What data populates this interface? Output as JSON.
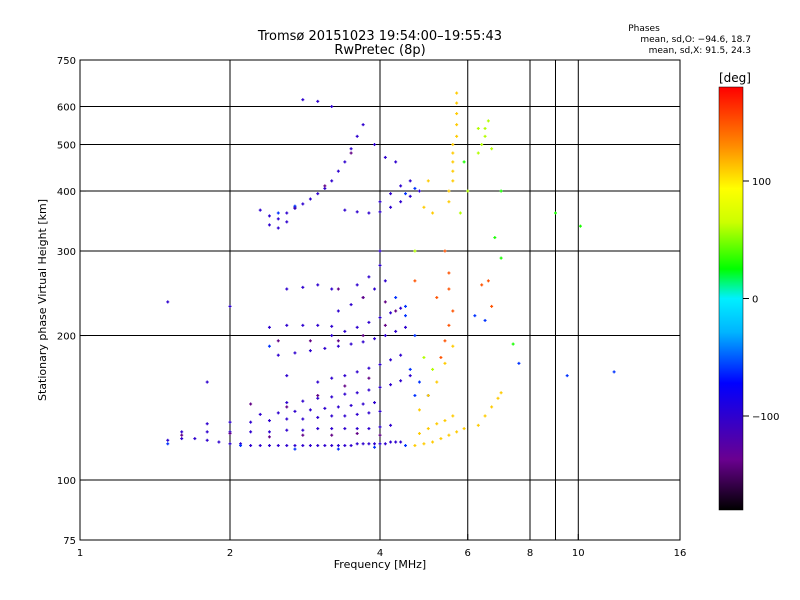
{
  "chart_data": {
    "type": "scatter",
    "title": "Tromsø 20151023 19:54:00–19:55:43",
    "subtitle": "RwPretec (8p)",
    "xlabel": "Frequency [MHz]",
    "ylabel": "Stationary phase Virtual Height [km]",
    "x_scale": "log",
    "y_scale": "log",
    "xlim": [
      1,
      16
    ],
    "ylim": [
      75,
      750
    ],
    "x_ticks": [
      1,
      2,
      4,
      6,
      8,
      10,
      16
    ],
    "y_ticks": [
      75,
      100,
      200,
      300,
      400,
      500,
      600,
      750
    ],
    "x_gridlines": [
      2,
      4,
      6,
      8,
      9,
      10
    ],
    "y_gridlines": [
      100,
      200,
      300,
      400,
      500,
      600
    ],
    "grid": true,
    "stats": {
      "header": "Phases",
      "line1": "mean, sd,O: −94.6, 18.7",
      "line2": "mean, sd,X:  91.5, 24.3"
    },
    "colorbar": {
      "label": "[deg]",
      "range": [
        -180,
        180
      ],
      "ticks": [
        100,
        0,
        -100
      ],
      "tick_labels": [
        "100",
        "0",
        "−100"
      ]
    },
    "series": [
      {
        "phase_deg": -100,
        "points": [
          [
            1.5,
            121
          ],
          [
            1.6,
            122
          ],
          [
            1.7,
            122
          ],
          [
            1.8,
            121
          ],
          [
            1.9,
            120
          ],
          [
            2.0,
            119
          ],
          [
            2.1,
            119
          ],
          [
            2.2,
            118
          ],
          [
            2.3,
            118
          ],
          [
            2.4,
            118
          ],
          [
            2.5,
            118
          ],
          [
            2.6,
            118
          ],
          [
            2.7,
            118
          ],
          [
            2.8,
            118
          ],
          [
            2.9,
            118
          ],
          [
            3.0,
            118
          ],
          [
            3.1,
            118
          ],
          [
            3.2,
            118
          ],
          [
            3.3,
            118
          ],
          [
            3.4,
            118
          ],
          [
            3.5,
            118
          ],
          [
            3.6,
            119
          ],
          [
            3.7,
            119
          ],
          [
            3.8,
            119
          ],
          [
            3.9,
            119
          ],
          [
            4.0,
            119
          ],
          [
            4.1,
            119
          ],
          [
            4.2,
            120
          ],
          [
            4.3,
            120
          ],
          [
            4.4,
            120
          ],
          [
            1.6,
            126
          ],
          [
            1.8,
            126
          ],
          [
            2.0,
            126
          ],
          [
            2.2,
            126
          ],
          [
            2.4,
            126
          ],
          [
            2.6,
            127
          ],
          [
            2.8,
            127
          ],
          [
            3.0,
            128
          ],
          [
            3.2,
            128
          ],
          [
            3.4,
            128
          ],
          [
            3.6,
            128
          ],
          [
            3.8,
            128
          ],
          [
            4.0,
            129
          ],
          [
            4.2,
            130
          ],
          [
            1.8,
            131
          ],
          [
            2.0,
            132
          ],
          [
            2.2,
            132
          ],
          [
            2.4,
            133
          ],
          [
            2.6,
            134
          ],
          [
            2.8,
            134
          ],
          [
            3.0,
            135
          ],
          [
            3.2,
            136
          ],
          [
            3.4,
            136
          ],
          [
            3.6,
            137
          ],
          [
            3.8,
            138
          ],
          [
            4.0,
            139
          ],
          [
            2.3,
            137
          ],
          [
            2.5,
            138
          ],
          [
            2.7,
            139
          ],
          [
            2.9,
            140
          ],
          [
            3.1,
            141
          ],
          [
            3.3,
            142
          ],
          [
            3.5,
            143
          ],
          [
            3.7,
            144
          ],
          [
            3.9,
            145
          ],
          [
            2.6,
            145
          ],
          [
            2.8,
            146
          ],
          [
            3.0,
            148
          ],
          [
            3.2,
            149
          ],
          [
            3.4,
            151
          ],
          [
            3.6,
            152
          ],
          [
            3.8,
            154
          ],
          [
            4.0,
            156
          ],
          [
            4.2,
            158
          ],
          [
            4.4,
            161
          ],
          [
            4.6,
            165
          ],
          [
            3.0,
            160
          ],
          [
            3.2,
            163
          ],
          [
            3.4,
            165
          ],
          [
            3.6,
            168
          ],
          [
            3.8,
            171
          ],
          [
            4.0,
            174
          ],
          [
            4.2,
            178
          ],
          [
            4.4,
            182
          ],
          [
            2.5,
            182
          ],
          [
            2.7,
            184
          ],
          [
            2.9,
            186
          ],
          [
            3.1,
            188
          ],
          [
            3.3,
            190
          ],
          [
            3.5,
            192
          ],
          [
            3.7,
            194
          ],
          [
            3.9,
            197
          ],
          [
            4.1,
            200
          ],
          [
            4.3,
            204
          ],
          [
            4.5,
            208
          ],
          [
            3.2,
            200
          ],
          [
            3.4,
            204
          ],
          [
            3.6,
            208
          ],
          [
            3.8,
            213
          ],
          [
            4.0,
            218
          ],
          [
            4.2,
            223
          ],
          [
            4.4,
            228
          ],
          [
            2.4,
            208
          ],
          [
            2.6,
            210
          ],
          [
            2.8,
            210
          ],
          [
            3.0,
            210
          ],
          [
            3.2,
            209
          ],
          [
            3.3,
            225
          ],
          [
            3.5,
            232
          ],
          [
            3.7,
            240
          ],
          [
            3.9,
            250
          ],
          [
            4.1,
            260
          ],
          [
            3.6,
            255
          ],
          [
            3.8,
            265
          ],
          [
            4.0,
            280
          ],
          [
            4.0,
            300
          ],
          [
            2.6,
            250
          ],
          [
            2.8,
            252
          ],
          [
            3.0,
            255
          ],
          [
            3.2,
            250
          ],
          [
            2.3,
            365
          ],
          [
            2.4,
            355
          ],
          [
            2.5,
            350
          ],
          [
            2.6,
            360
          ],
          [
            2.7,
            368
          ],
          [
            2.8,
            376
          ],
          [
            2.9,
            385
          ],
          [
            3.0,
            395
          ],
          [
            3.1,
            405
          ],
          [
            3.2,
            420
          ],
          [
            3.3,
            440
          ],
          [
            3.4,
            460
          ],
          [
            3.5,
            490
          ],
          [
            3.6,
            520
          ],
          [
            3.7,
            550
          ],
          [
            2.4,
            340
          ],
          [
            2.5,
            335
          ],
          [
            2.6,
            345
          ],
          [
            3.4,
            365
          ],
          [
            3.6,
            362
          ],
          [
            3.8,
            360
          ],
          [
            4.0,
            362
          ],
          [
            4.2,
            370
          ],
          [
            4.4,
            380
          ],
          [
            4.6,
            390
          ],
          [
            4.8,
            400
          ],
          [
            4.0,
            380
          ],
          [
            4.2,
            395
          ],
          [
            4.4,
            410
          ],
          [
            4.6,
            420
          ],
          [
            2.8,
            620
          ],
          [
            3.0,
            615
          ],
          [
            3.2,
            600
          ],
          [
            3.9,
            500
          ],
          [
            4.1,
            470
          ],
          [
            4.3,
            460
          ],
          [
            1.5,
            235
          ],
          [
            2.0,
            230
          ],
          [
            1.8,
            160
          ],
          [
            2.6,
            165
          ]
        ]
      },
      {
        "phase_deg": -140,
        "points": [
          [
            1.6,
            124
          ],
          [
            2.0,
            125
          ],
          [
            2.4,
            123
          ],
          [
            2.8,
            124
          ],
          [
            3.2,
            124
          ],
          [
            3.6,
            125
          ],
          [
            4.0,
            124
          ],
          [
            2.2,
            144
          ],
          [
            2.6,
            142
          ],
          [
            3.0,
            150
          ],
          [
            3.4,
            157
          ],
          [
            3.8,
            163
          ],
          [
            2.5,
            195
          ],
          [
            2.9,
            195
          ],
          [
            3.3,
            195
          ],
          [
            3.7,
            200
          ],
          [
            4.1,
            210
          ],
          [
            2.7,
            370
          ],
          [
            3.1,
            410
          ],
          [
            3.5,
            480
          ],
          [
            3.3,
            250
          ],
          [
            3.7,
            240
          ],
          [
            4.1,
            235
          ],
          [
            4.3,
            225
          ]
        ]
      },
      {
        "phase_deg": -60,
        "points": [
          [
            1.5,
            119
          ],
          [
            2.1,
            118
          ],
          [
            2.7,
            116
          ],
          [
            3.3,
            116
          ],
          [
            3.9,
            117
          ],
          [
            4.5,
            118
          ],
          [
            2.5,
            360
          ],
          [
            2.7,
            372
          ],
          [
            4.5,
            395
          ],
          [
            4.7,
            405
          ],
          [
            4.3,
            240
          ],
          [
            4.5,
            220
          ],
          [
            4.7,
            200
          ],
          [
            4.6,
            170
          ],
          [
            4.8,
            160
          ],
          [
            5.0,
            150
          ],
          [
            4.7,
            150
          ],
          [
            2.4,
            190
          ],
          [
            4.5,
            230
          ],
          [
            6.2,
            220
          ],
          [
            6.5,
            215
          ],
          [
            7.6,
            175
          ],
          [
            9.5,
            165
          ],
          [
            11.8,
            168
          ]
        ]
      },
      {
        "phase_deg": 110,
        "points": [
          [
            4.7,
            118
          ],
          [
            4.9,
            119
          ],
          [
            5.1,
            120
          ],
          [
            5.3,
            122
          ],
          [
            5.5,
            124
          ],
          [
            5.7,
            126
          ],
          [
            5.9,
            128
          ],
          [
            4.8,
            125
          ],
          [
            5.0,
            128
          ],
          [
            5.2,
            131
          ],
          [
            5.4,
            133
          ],
          [
            5.6,
            136
          ],
          [
            5.5,
            380
          ],
          [
            5.5,
            400
          ],
          [
            5.6,
            420
          ],
          [
            5.6,
            440
          ],
          [
            5.6,
            460
          ],
          [
            5.6,
            480
          ],
          [
            5.6,
            500
          ],
          [
            5.7,
            520
          ],
          [
            5.7,
            550
          ],
          [
            5.7,
            580
          ],
          [
            5.7,
            610
          ],
          [
            5.7,
            640
          ],
          [
            4.8,
            140
          ],
          [
            5.0,
            150
          ],
          [
            5.2,
            160
          ],
          [
            5.4,
            175
          ],
          [
            5.6,
            190
          ],
          [
            6.3,
            130
          ],
          [
            6.5,
            136
          ],
          [
            6.7,
            142
          ],
          [
            6.9,
            148
          ],
          [
            7.0,
            152
          ],
          [
            4.9,
            370
          ],
          [
            5.1,
            360
          ],
          [
            5.0,
            420
          ]
        ]
      },
      {
        "phase_deg": 150,
        "points": [
          [
            5.3,
            180
          ],
          [
            5.4,
            195
          ],
          [
            5.5,
            210
          ],
          [
            5.6,
            225
          ],
          [
            5.5,
            250
          ],
          [
            5.5,
            270
          ],
          [
            5.4,
            300
          ],
          [
            6.4,
            255
          ],
          [
            6.6,
            260
          ],
          [
            4.7,
            260
          ],
          [
            5.2,
            240
          ],
          [
            6.7,
            230
          ]
        ]
      },
      {
        "phase_deg": 60,
        "points": [
          [
            6.3,
            480
          ],
          [
            6.4,
            500
          ],
          [
            6.5,
            520
          ],
          [
            6.5,
            540
          ],
          [
            6.6,
            560
          ],
          [
            6.7,
            490
          ],
          [
            5.8,
            360
          ],
          [
            6.0,
            400
          ],
          [
            4.9,
            180
          ],
          [
            5.1,
            170
          ],
          [
            6.3,
            540
          ],
          [
            4.7,
            300
          ]
        ]
      },
      {
        "phase_deg": 30,
        "points": [
          [
            7.0,
            400
          ],
          [
            9.0,
            360
          ],
          [
            10.1,
            338
          ],
          [
            7.4,
            192
          ],
          [
            7.0,
            290
          ],
          [
            6.8,
            320
          ],
          [
            5.9,
            460
          ]
        ]
      }
    ]
  }
}
